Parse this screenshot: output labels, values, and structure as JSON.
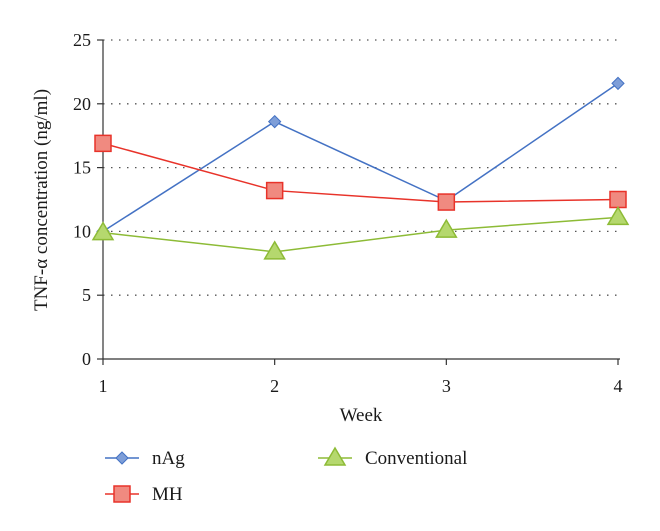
{
  "chart_data": {
    "type": "line",
    "x": [
      1,
      2,
      3,
      4
    ],
    "xticks": [
      "1",
      "2",
      "3",
      "4"
    ],
    "xlabel": "Week",
    "ylabel": "TNF-α concentration (ng/ml)",
    "ylim": [
      0,
      25
    ],
    "yticks": [
      0,
      5,
      10,
      15,
      20,
      25
    ],
    "grid": "horizontal dotted",
    "legend_position": "bottom",
    "series": [
      {
        "name": "nAg",
        "values": [
          10.0,
          18.6,
          12.4,
          21.6
        ],
        "color": "#4472c4",
        "marker_fill": "#7e9ed8",
        "marker": "diamond"
      },
      {
        "name": "MH",
        "values": [
          16.9,
          13.2,
          12.3,
          12.5
        ],
        "color": "#e8332a",
        "marker_fill": "#f08a80",
        "marker": "square"
      },
      {
        "name": "Conventional",
        "values": [
          9.9,
          8.4,
          10.1,
          11.1
        ],
        "color": "#8dbb36",
        "marker_fill": "#b5d86e",
        "marker": "triangle"
      }
    ]
  }
}
